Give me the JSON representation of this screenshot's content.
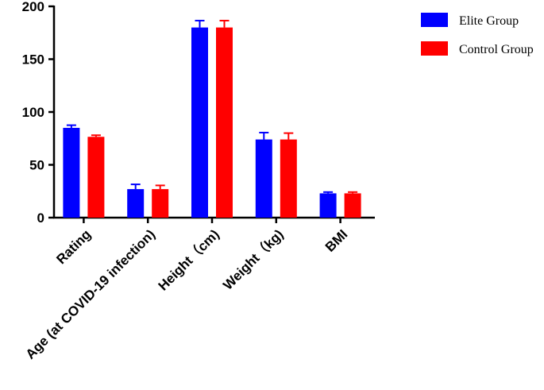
{
  "chart_data": {
    "type": "bar",
    "categories": [
      "Rating",
      "Age (at COVID-19 infection)",
      "Height（cm)",
      "Weight（kg)",
      "BMI"
    ],
    "series": [
      {
        "name": "Elite Group",
        "color": "#0000ff",
        "values": [
          85,
          27,
          180,
          74,
          23
        ],
        "errors": [
          2.5,
          4.5,
          6.5,
          6.5,
          1.2
        ]
      },
      {
        "name": "Control Group",
        "color": "#ff0000",
        "values": [
          76.5,
          27,
          180,
          74,
          23
        ],
        "errors": [
          1.5,
          3.5,
          6.5,
          6,
          1.2
        ]
      }
    ],
    "ylim": [
      0,
      200
    ],
    "yticks": [
      "0",
      "50",
      "100",
      "150",
      "200"
    ],
    "xlabel": "",
    "ylabel": "",
    "legend_position": "top-right",
    "grid": false
  }
}
